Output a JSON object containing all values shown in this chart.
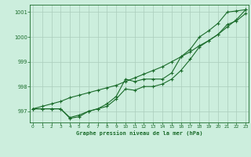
{
  "title": "Graphe pression niveau de la mer (hPa)",
  "background_color": "#cceedd",
  "grid_color": "#aaccbb",
  "line_color": "#1a6b2a",
  "xlim": [
    -0.3,
    23.3
  ],
  "ylim": [
    996.55,
    1001.3
  ],
  "yticks": [
    997,
    998,
    999,
    1000,
    1001
  ],
  "xticks": [
    0,
    1,
    2,
    3,
    4,
    5,
    6,
    7,
    8,
    9,
    10,
    11,
    12,
    13,
    14,
    15,
    16,
    17,
    18,
    19,
    20,
    21,
    22,
    23
  ],
  "series_straight": [
    997.1,
    997.2,
    997.3,
    997.4,
    997.55,
    997.65,
    997.75,
    997.85,
    997.95,
    998.05,
    998.2,
    998.35,
    998.5,
    998.65,
    998.8,
    999.0,
    999.2,
    999.4,
    999.65,
    999.85,
    1000.1,
    1000.4,
    1000.7,
    1001.1
  ],
  "series_main": [
    997.1,
    997.1,
    997.1,
    997.1,
    996.75,
    996.85,
    997.0,
    997.1,
    997.3,
    997.6,
    998.3,
    998.2,
    998.3,
    998.3,
    998.3,
    998.55,
    999.2,
    999.5,
    1000.0,
    1000.25,
    1000.55,
    1001.0,
    1001.05,
    1001.1
  ],
  "series_low": [
    997.1,
    997.1,
    997.1,
    997.1,
    996.72,
    996.78,
    997.0,
    997.1,
    997.2,
    997.5,
    997.9,
    997.85,
    998.0,
    998.0,
    998.1,
    998.3,
    998.65,
    999.1,
    999.6,
    999.85,
    1000.1,
    1000.5,
    1000.65,
    1000.95
  ]
}
